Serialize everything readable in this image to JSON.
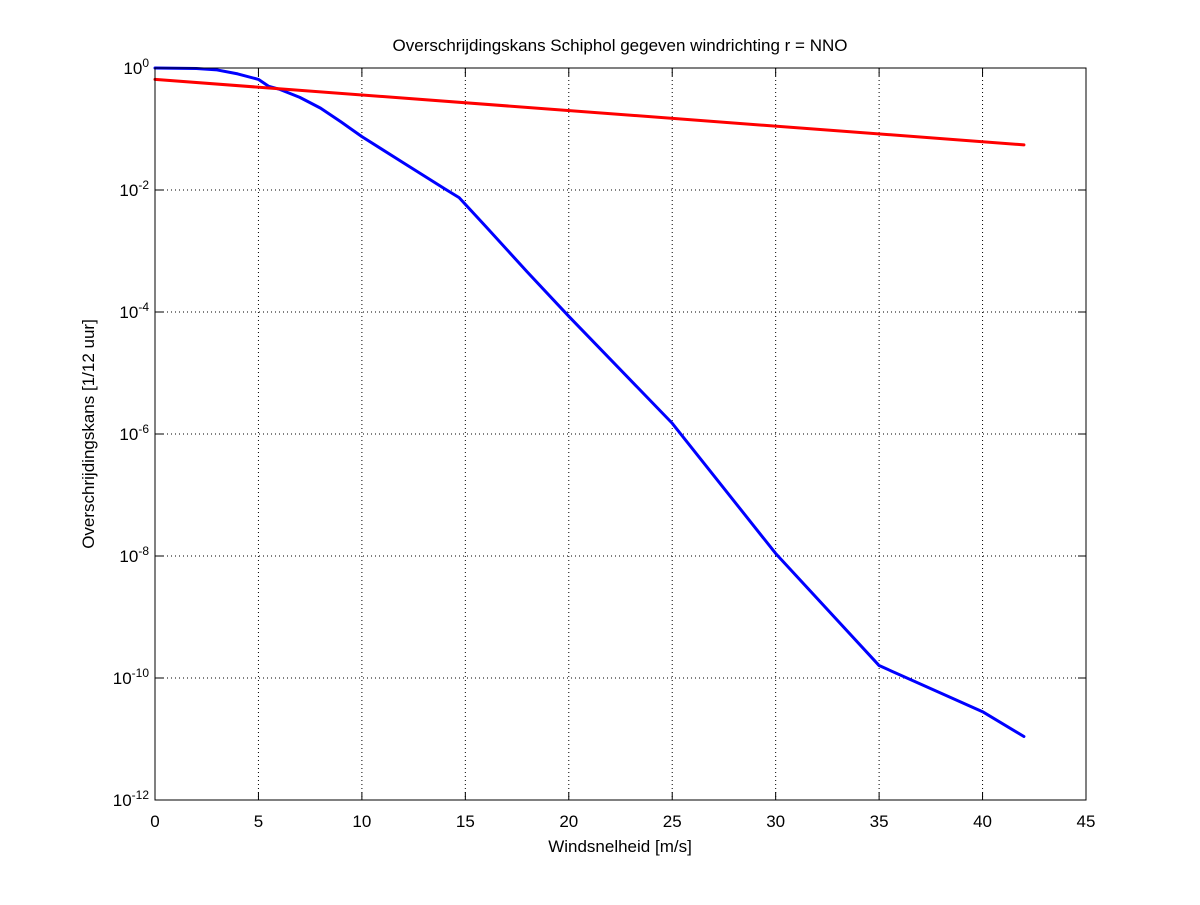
{
  "chart_data": {
    "type": "line",
    "title": "Overschrijdingskans Schiphol gegeven windrichting r = NNO",
    "xlabel": "Windsnelheid [m/s]",
    "ylabel": "Overschrijdingskans [1/12 uur]",
    "xlim": [
      0,
      45
    ],
    "ylim": [
      1e-12,
      1
    ],
    "yscale": "log",
    "grid": true,
    "x_ticks": [
      {
        "value": 0,
        "label": "0"
      },
      {
        "value": 5,
        "label": "5"
      },
      {
        "value": 10,
        "label": "10"
      },
      {
        "value": 15,
        "label": "15"
      },
      {
        "value": 20,
        "label": "20"
      },
      {
        "value": 25,
        "label": "25"
      },
      {
        "value": 30,
        "label": "30"
      },
      {
        "value": 35,
        "label": "35"
      },
      {
        "value": 40,
        "label": "40"
      },
      {
        "value": 45,
        "label": "45"
      }
    ],
    "y_ticks": [
      {
        "value": 1,
        "base": "10",
        "exp": "0"
      },
      {
        "value": 0.01,
        "base": "10",
        "exp": "-2"
      },
      {
        "value": 0.0001,
        "base": "10",
        "exp": "-4"
      },
      {
        "value": 1e-06,
        "base": "10",
        "exp": "-6"
      },
      {
        "value": 1e-08,
        "base": "10",
        "exp": "-8"
      },
      {
        "value": 1e-10,
        "base": "10",
        "exp": "-10"
      },
      {
        "value": 1e-12,
        "base": "10",
        "exp": "-12"
      }
    ],
    "series": [
      {
        "color": "#0000ff",
        "x": [
          0,
          2,
          3,
          4,
          5,
          5.5,
          6,
          7,
          8,
          9,
          10,
          12,
          14,
          14.7,
          16,
          18,
          20,
          25,
          30,
          35,
          40,
          42
        ],
        "y": [
          1.0,
          0.98,
          0.93,
          0.8,
          0.65,
          0.5,
          0.45,
          0.33,
          0.22,
          0.13,
          0.075,
          0.028,
          0.0105,
          0.0075,
          0.0025,
          0.00045,
          8.5e-05,
          1.5e-06,
          1.1e-08,
          1.6e-10,
          2.8e-11,
          1.1e-11
        ]
      },
      {
        "color": "#ff0000",
        "x": [
          0,
          42
        ],
        "y": [
          0.65,
          0.055
        ]
      }
    ]
  }
}
